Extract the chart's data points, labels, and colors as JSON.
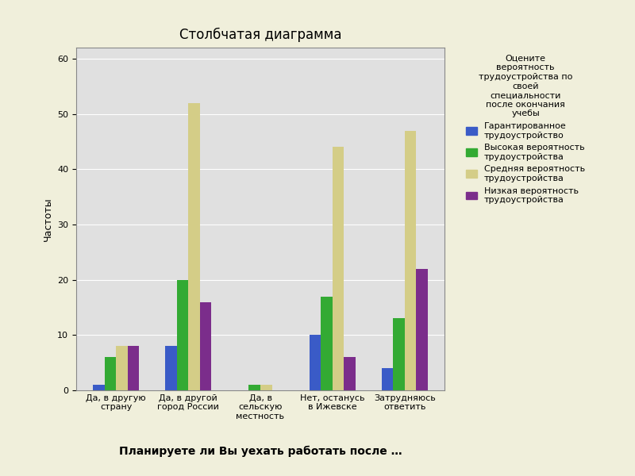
{
  "title": "Столбчатая диаграмма",
  "xlabel": "Планируете ли Вы уехать работать после …",
  "ylabel": "Частоты",
  "legend_title": "Оцените\nвероятность\nтрудоустройства по\nсвоей\nспециальности\nпосле окончания\nучебы",
  "categories": [
    "Да, в другую\nстрану",
    "Да, в другой\nгород России",
    "Да, в\nсельскую\nместность",
    "Нет, останусь\nв Ижевске",
    "Затрудняюсь\nответить"
  ],
  "series_names": [
    "Гарантированное\nтрудоустройство",
    "Высокая вероятность\nтрудоустройства",
    "Средняя вероятность\nтрудоустройства",
    "Низкая вероятность\nтрудоустройства"
  ],
  "series_values": [
    [
      1,
      8,
      0,
      10,
      4
    ],
    [
      6,
      20,
      1,
      17,
      13
    ],
    [
      8,
      52,
      1,
      44,
      47
    ],
    [
      8,
      16,
      0,
      6,
      22
    ]
  ],
  "colors": [
    "#3a5bc7",
    "#33aa33",
    "#d4cd87",
    "#7b2d8b"
  ],
  "ylim": [
    0,
    62
  ],
  "yticks": [
    0,
    10,
    20,
    30,
    40,
    50,
    60
  ],
  "plot_bg": "#e0e0e0",
  "fig_bg": "#f0efdb",
  "outer_bg": "#e8e4b8",
  "bar_width": 0.16,
  "title_fontsize": 12,
  "axis_label_fontsize": 9,
  "tick_fontsize": 8,
  "legend_title_fontsize": 8,
  "legend_fontsize": 8,
  "xlabel_fontsize": 10
}
